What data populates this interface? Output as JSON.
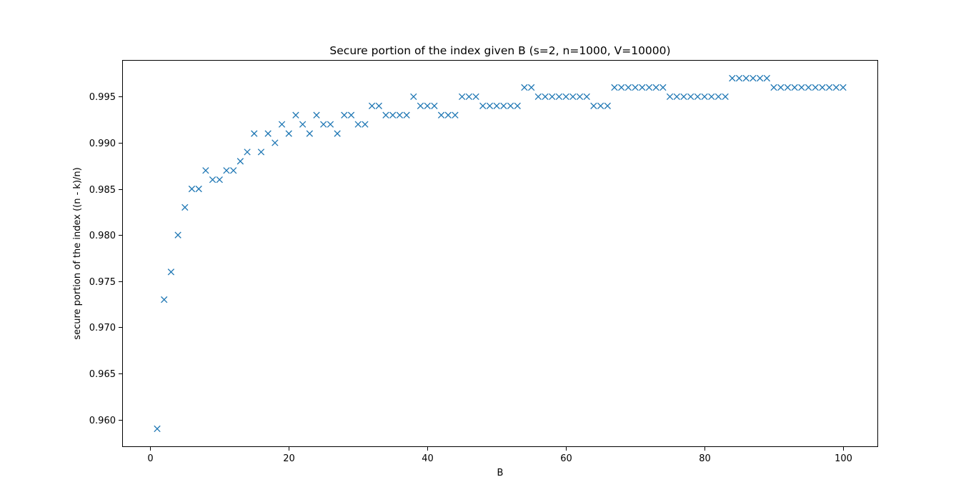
{
  "chart_data": {
    "type": "scatter",
    "title": "Secure portion of the index given B (s=2, n=1000, V=10000)",
    "xlabel": "B",
    "ylabel": "secure portion of the index ((n - k)/n)",
    "xlim": [
      -3.95,
      104.95
    ],
    "ylim": [
      0.9571,
      0.9989
    ],
    "xticks": [
      0,
      20,
      40,
      60,
      80,
      100
    ],
    "yticks": [
      0.96,
      0.965,
      0.97,
      0.975,
      0.98,
      0.985,
      0.99,
      0.995
    ],
    "marker": "x",
    "color": "#1f77b4",
    "grid": false,
    "series": [
      {
        "x": [
          1,
          2,
          3,
          4,
          5,
          6,
          7,
          8,
          9,
          10,
          11,
          12,
          13,
          14,
          15,
          16,
          17,
          18,
          19,
          20,
          21,
          22,
          23,
          24,
          25,
          26,
          27,
          28,
          29,
          30,
          31,
          32,
          33,
          34,
          35,
          36,
          37,
          38,
          39,
          40,
          41,
          42,
          43,
          44,
          45,
          46,
          47,
          48,
          49,
          50,
          51,
          52,
          53,
          54,
          55,
          56,
          57,
          58,
          59,
          60,
          61,
          62,
          63,
          64,
          65,
          66,
          67,
          68,
          69,
          70,
          71,
          72,
          73,
          74,
          75,
          76,
          77,
          78,
          79,
          80,
          81,
          82,
          83,
          84,
          85,
          86,
          87,
          88,
          89,
          90,
          91,
          92,
          93,
          94,
          95,
          96,
          97,
          98,
          99,
          100
        ],
        "y": [
          0.959,
          0.973,
          0.976,
          0.98,
          0.983,
          0.985,
          0.985,
          0.987,
          0.986,
          0.986,
          0.987,
          0.987,
          0.988,
          0.989,
          0.991,
          0.989,
          0.991,
          0.99,
          0.992,
          0.991,
          0.993,
          0.992,
          0.991,
          0.993,
          0.992,
          0.992,
          0.991,
          0.993,
          0.993,
          0.992,
          0.992,
          0.994,
          0.994,
          0.993,
          0.993,
          0.993,
          0.993,
          0.995,
          0.994,
          0.994,
          0.994,
          0.993,
          0.993,
          0.993,
          0.995,
          0.995,
          0.995,
          0.994,
          0.994,
          0.994,
          0.994,
          0.994,
          0.994,
          0.996,
          0.996,
          0.995,
          0.995,
          0.995,
          0.995,
          0.995,
          0.995,
          0.995,
          0.995,
          0.994,
          0.994,
          0.994,
          0.996,
          0.996,
          0.996,
          0.996,
          0.996,
          0.996,
          0.996,
          0.996,
          0.995,
          0.995,
          0.995,
          0.995,
          0.995,
          0.995,
          0.995,
          0.995,
          0.995,
          0.997,
          0.997,
          0.997,
          0.997,
          0.997,
          0.997,
          0.996,
          0.996,
          0.996,
          0.996,
          0.996,
          0.996,
          0.996,
          0.996,
          0.996,
          0.996,
          0.996
        ]
      }
    ]
  }
}
